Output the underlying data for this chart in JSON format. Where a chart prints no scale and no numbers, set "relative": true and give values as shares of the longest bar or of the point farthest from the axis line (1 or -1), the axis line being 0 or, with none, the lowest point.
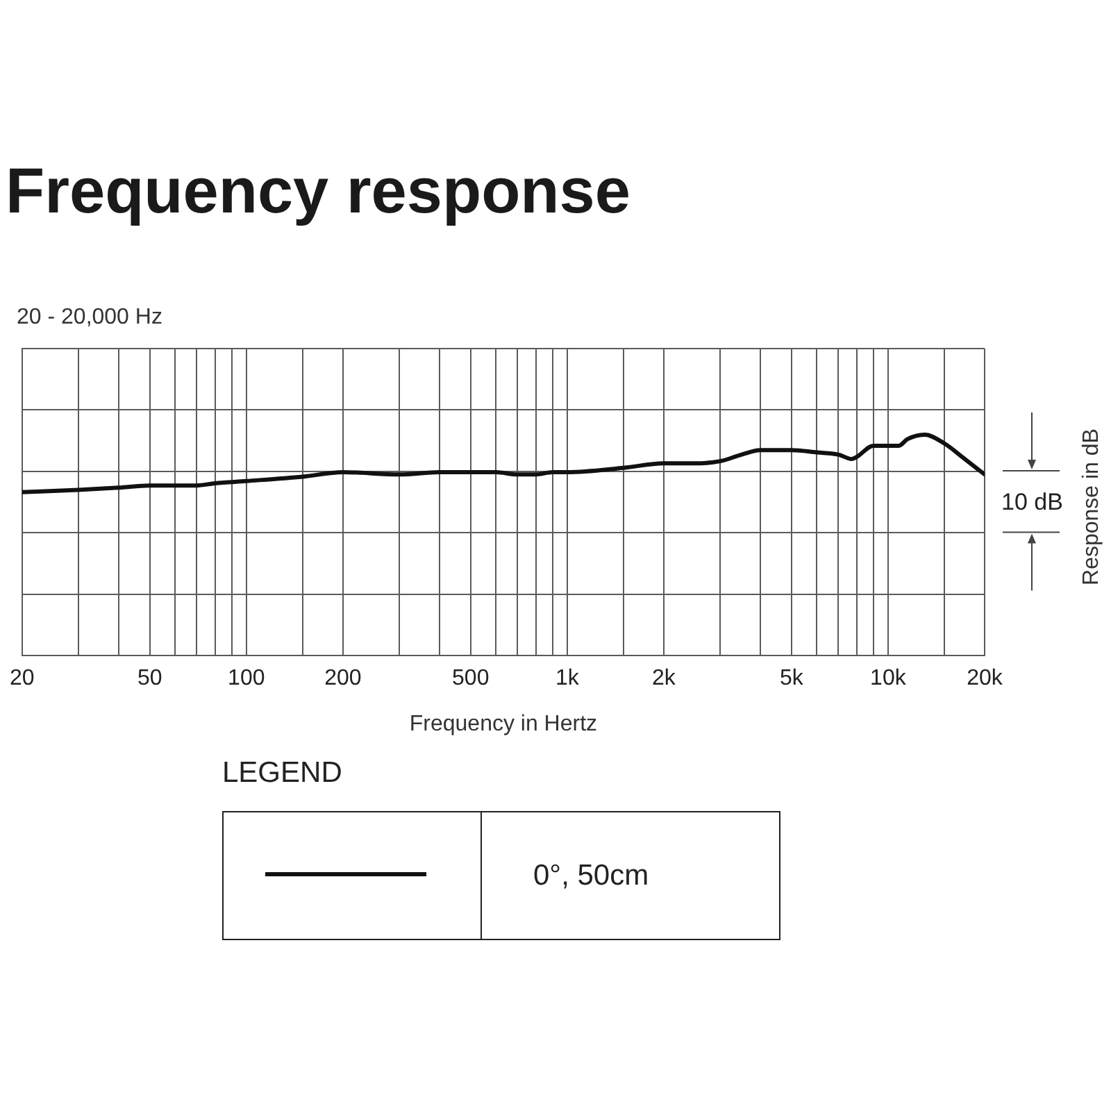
{
  "chart_data": {
    "type": "line",
    "title": "Frequency response",
    "subtitle": "20 - 20,000 Hz",
    "xlabel": "Frequency in Hertz",
    "ylabel": "Response in dB",
    "legend_title": "LEGEND",
    "annotations": [
      "10 dB"
    ],
    "x": [
      20,
      30,
      40,
      50,
      60,
      70,
      80,
      100,
      150,
      200,
      300,
      400,
      500,
      600,
      700,
      800,
      900,
      1000,
      1500,
      2000,
      2500,
      3000,
      3500,
      4000,
      5000,
      6000,
      7000,
      7700,
      8000,
      9000,
      10000,
      10800,
      11500,
      13000,
      15000,
      17000,
      20000
    ],
    "series": [
      {
        "name": "0°, 50cm",
        "color": "#111111",
        "values": [
          0.74,
          0.75,
          0.76,
          0.77,
          0.77,
          0.77,
          0.78,
          0.79,
          0.81,
          0.83,
          0.82,
          0.83,
          0.83,
          0.83,
          0.82,
          0.82,
          0.83,
          0.83,
          0.85,
          0.87,
          0.87,
          0.88,
          0.91,
          0.93,
          0.93,
          0.92,
          0.91,
          0.89,
          0.9,
          0.95,
          0.95,
          0.95,
          0.98,
          1,
          0.96,
          0.9,
          0.82
        ]
      }
    ],
    "relative": true,
    "log": "x",
    "xlim": [
      20,
      20000
    ],
    "xticks": [
      20,
      {
        "value": 30,
        "label": null
      },
      {
        "value": 40,
        "label": null
      },
      50,
      {
        "value": 60,
        "label": null
      },
      {
        "value": 70,
        "label": null
      },
      {
        "value": 80,
        "label": null
      },
      {
        "value": 90,
        "label": null
      },
      100,
      {
        "value": 150,
        "label": null
      },
      200,
      {
        "value": 300,
        "label": null
      },
      {
        "value": 400,
        "label": null
      },
      500,
      {
        "value": 600,
        "label": null
      },
      {
        "value": 700,
        "label": null
      },
      {
        "value": 800,
        "label": null
      },
      {
        "value": 900,
        "label": null
      },
      {
        "value": 1000,
        "label": "1k"
      },
      {
        "value": 1500,
        "label": null
      },
      {
        "value": 2000,
        "label": "2k"
      },
      {
        "value": 3000,
        "label": null
      },
      {
        "value": 4000,
        "label": null
      },
      {
        "value": 5000,
        "label": "5k"
      },
      {
        "value": 6000,
        "label": null
      },
      {
        "value": 7000,
        "label": null
      },
      {
        "value": 8000,
        "label": null
      },
      {
        "value": 9000,
        "label": null
      },
      {
        "value": 10000,
        "label": "10k"
      },
      {
        "value": 15000,
        "label": null
      },
      {
        "value": 20000,
        "label": "20k"
      }
    ],
    "grid": true,
    "legend": "bottom",
    "marker": "none"
  }
}
